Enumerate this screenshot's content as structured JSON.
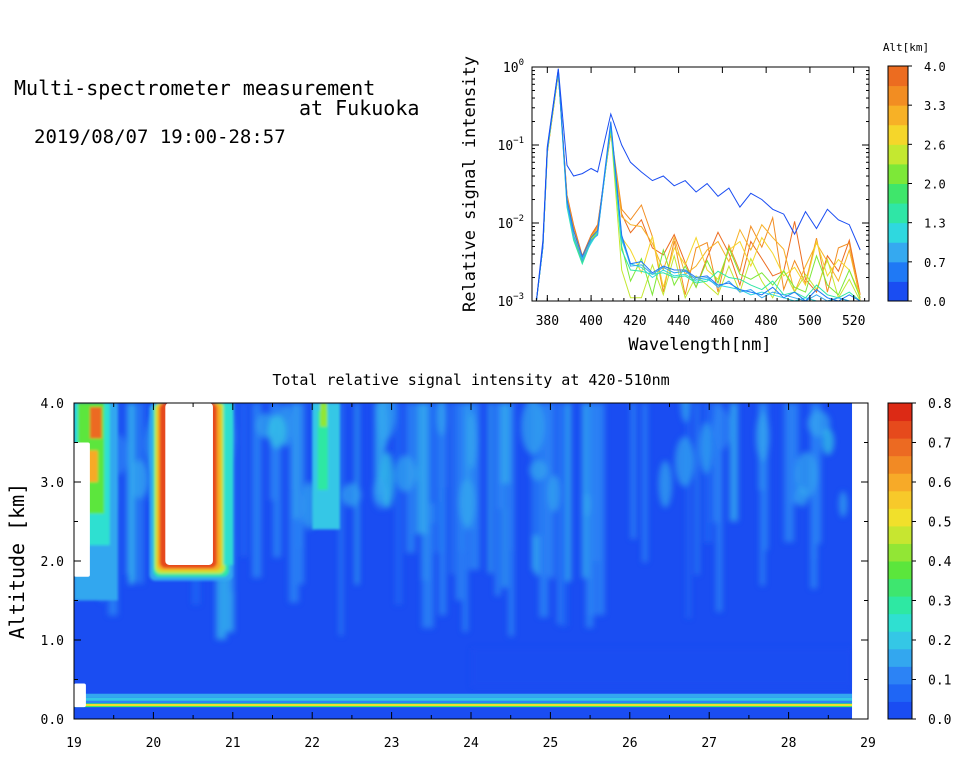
{
  "header": {
    "title_line1": "Multi-spectrometer measurement",
    "title_line2": "at Fukuoka",
    "date_range": "2019/08/07 19:00-28:57"
  },
  "colors": {
    "scale": [
      "#1a4df2",
      "#1f66f5",
      "#2c83f5",
      "#33a7ef",
      "#34c7e6",
      "#2fe0d1",
      "#2ee8a3",
      "#3ee66f",
      "#5be63c",
      "#92e635",
      "#c7e630",
      "#f1e02b",
      "#f7c92a",
      "#f7aa28",
      "#f28a24",
      "#ec6a22",
      "#e64a1c",
      "#dc2a15"
    ]
  },
  "chart_data": [
    {
      "id": "spectra",
      "type": "line",
      "xlabel": "Wavelength[nm]",
      "ylabel": "Relative signal intensity",
      "xlim": [
        373,
        527
      ],
      "ylim": [
        0.001,
        1
      ],
      "y_scale": "log",
      "x_ticks": [
        380,
        400,
        420,
        440,
        460,
        480,
        500,
        520
      ],
      "y_ticks": [
        {
          "value": 1,
          "base": "10",
          "exp": "0"
        },
        {
          "value": 0.1,
          "base": "10",
          "exp": "−1"
        },
        {
          "value": 0.01,
          "base": "10",
          "exp": "−2"
        },
        {
          "value": 0.001,
          "base": "10",
          "exp": "−3"
        }
      ],
      "colorbar": {
        "label": "Alt[km]",
        "ticks": [
          "4.0",
          "3.3",
          "2.6",
          "2.0",
          "1.3",
          "0.7",
          "0.0"
        ],
        "range": [
          0.0,
          4.0
        ],
        "colors": [
          "#1a4df2",
          "#1f79f5",
          "#35a9f0",
          "#2fd8df",
          "#2fe6a6",
          "#3fe66b",
          "#7de838",
          "#c4e830",
          "#f5d62a",
          "#f7b126",
          "#f28d22",
          "#ec6c20"
        ]
      },
      "x": [
        375,
        378,
        380,
        385,
        389,
        392,
        396,
        400,
        403,
        409,
        414,
        418,
        423,
        428,
        433,
        438,
        443,
        448,
        453,
        458,
        463,
        468,
        473,
        478,
        483,
        488,
        493,
        498,
        503,
        508,
        513,
        518,
        523
      ],
      "series": [
        {
          "altitude": 0.0,
          "values": [
            0.001,
            0.006,
            0.095,
            0.95,
            0.055,
            0.04,
            0.043,
            0.05,
            0.045,
            0.25,
            0.1,
            0.06,
            0.045,
            0.035,
            0.04,
            0.03,
            0.035,
            0.025,
            0.032,
            0.022,
            0.028,
            0.016,
            0.024,
            0.02,
            0.015,
            0.013,
            0.0072,
            0.014,
            0.0085,
            0.015,
            0.011,
            0.0095,
            0.0045
          ]
        },
        {
          "altitude": 0.4,
          "values": [
            0.001,
            0.005,
            0.09,
            0.93,
            0.02,
            0.008,
            0.0037,
            0.0065,
            0.008,
            0.2,
            0.007,
            0.003,
            0.0032,
            0.0023,
            0.0028,
            0.0025,
            0.0025,
            0.002,
            0.0021,
            0.0016,
            0.0017,
            0.0014,
            0.0013,
            0.0012,
            0.0015,
            0.0011,
            0.0013,
            0.001,
            0.0014,
            0.0011,
            0.001,
            0.0012,
            0.001
          ]
        },
        {
          "altitude": 0.8,
          "values": [
            0.001,
            0.005,
            0.088,
            0.92,
            0.018,
            0.007,
            0.0033,
            0.006,
            0.007,
            0.19,
            0.0065,
            0.0028,
            0.0029,
            0.0022,
            0.0027,
            0.0023,
            0.0024,
            0.0019,
            0.002,
            0.0015,
            0.0018,
            0.0013,
            0.0014,
            0.0011,
            0.0013,
            0.0012,
            0.0011,
            0.001,
            0.0012,
            0.001,
            0.0011,
            0.001,
            0.001
          ]
        },
        {
          "altitude": 1.2,
          "values": [
            0.001,
            0.005,
            0.086,
            0.9,
            0.017,
            0.0065,
            0.0035,
            0.0055,
            0.0075,
            0.18,
            0.006,
            0.003,
            0.0027,
            0.002,
            0.0025,
            0.0021,
            0.0022,
            0.0018,
            0.0019,
            0.0016,
            0.0015,
            0.0014,
            0.0012,
            0.0013,
            0.0012,
            0.0011,
            0.001,
            0.0011,
            0.001,
            0.001,
            0.0011,
            0.001,
            0.001
          ]
        },
        {
          "altitude": 1.6,
          "values": [
            0.001,
            0.005,
            0.085,
            0.88,
            0.016,
            0.006,
            0.003,
            0.0058,
            0.0072,
            0.17,
            0.0045,
            0.0025,
            0.0024,
            0.0022,
            0.0023,
            0.002,
            0.0021,
            0.0017,
            0.0018,
            0.0024,
            0.002,
            0.0019,
            0.0016,
            0.0014,
            0.0018,
            0.0012,
            0.0013,
            0.0011,
            0.0016,
            0.0012,
            0.0011,
            0.0013,
            0.001
          ]
        },
        {
          "altitude": 2.0,
          "values": [
            0.001,
            0.005,
            0.084,
            0.87,
            0.018,
            0.0065,
            0.0031,
            0.006,
            0.0075,
            0.17,
            0.005,
            0.0018,
            0.0035,
            0.0012,
            0.0045,
            0.0016,
            0.0028,
            0.0015,
            0.0033,
            0.0017,
            0.0048,
            0.0022,
            0.0019,
            0.0023,
            0.0016,
            0.0024,
            0.0015,
            0.0013,
            0.0038,
            0.0016,
            0.0012,
            0.0025,
            0.0011
          ]
        },
        {
          "altitude": 2.4,
          "values": [
            0.001,
            0.005,
            0.083,
            0.86,
            0.019,
            0.0068,
            0.0032,
            0.0062,
            0.0078,
            0.16,
            0.0025,
            0.0011,
            0.0011,
            0.0029,
            0.0012,
            0.0038,
            0.0011,
            0.0021,
            0.0016,
            0.0012,
            0.0028,
            0.0013,
            0.0035,
            0.0018,
            0.0011,
            0.0025,
            0.0013,
            0.0022,
            0.0014,
            0.0034,
            0.0011,
            0.0019,
            0.001
          ]
        },
        {
          "altitude": 2.8,
          "values": [
            0.001,
            0.005,
            0.082,
            0.85,
            0.02,
            0.007,
            0.0033,
            0.0064,
            0.008,
            0.16,
            0.0065,
            0.0045,
            0.0023,
            0.0068,
            0.0015,
            0.0048,
            0.0029,
            0.0065,
            0.0025,
            0.0019,
            0.0045,
            0.0058,
            0.0028,
            0.0065,
            0.0041,
            0.0021,
            0.0027,
            0.0016,
            0.0058,
            0.0021,
            0.0034,
            0.0025,
            0.0012
          ]
        },
        {
          "altitude": 3.2,
          "values": [
            0.001,
            0.005,
            0.081,
            0.84,
            0.021,
            0.008,
            0.0034,
            0.0066,
            0.0085,
            0.15,
            0.012,
            0.0095,
            0.009,
            0.0055,
            0.0025,
            0.0065,
            0.0022,
            0.0028,
            0.0045,
            0.0058,
            0.0032,
            0.0082,
            0.0045,
            0.0095,
            0.0065,
            0.0046,
            0.0013,
            0.0028,
            0.0055,
            0.0032,
            0.0018,
            0.0045,
            0.0011
          ]
        },
        {
          "altitude": 3.6,
          "values": [
            0.001,
            0.005,
            0.08,
            0.83,
            0.022,
            0.009,
            0.0036,
            0.0068,
            0.009,
            0.15,
            0.015,
            0.011,
            0.017,
            0.0067,
            0.0013,
            0.0059,
            0.0012,
            0.0048,
            0.0056,
            0.0013,
            0.0052,
            0.0024,
            0.0091,
            0.0049,
            0.0117,
            0.0014,
            0.0033,
            0.0017,
            0.0064,
            0.0013,
            0.0048,
            0.0055,
            0.001
          ]
        },
        {
          "altitude": 3.9,
          "values": [
            0.001,
            0.005,
            0.079,
            0.82,
            0.023,
            0.0095,
            0.0038,
            0.007,
            0.0095,
            0.14,
            0.013,
            0.0075,
            0.011,
            0.0048,
            0.0039,
            0.0071,
            0.0031,
            0.0015,
            0.0036,
            0.0076,
            0.0041,
            0.0016,
            0.0058,
            0.0035,
            0.0021,
            0.0024,
            0.0105,
            0.0019,
            0.0013,
            0.0038,
            0.0024,
            0.006,
            0.0012
          ]
        }
      ]
    },
    {
      "id": "altitude-time",
      "type": "heatmap",
      "title": "Total relative signal intensity at 420-510nm",
      "ylabel": "Altitude [km]",
      "xlabel": "",
      "xlim": [
        19,
        29
      ],
      "ylim": [
        0.0,
        4.0
      ],
      "x_ticks": [
        19,
        20,
        21,
        22,
        23,
        24,
        25,
        26,
        27,
        28,
        29
      ],
      "y_ticks": [
        "0.0",
        "1.0",
        "2.0",
        "3.0",
        "4.0"
      ],
      "colorbar": {
        "range": [
          0.0,
          0.8
        ],
        "ticks": [
          "0.8",
          "0.7",
          "0.6",
          "0.5",
          "0.4",
          "0.3",
          "0.2",
          "0.1",
          "0.0"
        ]
      },
      "data_end_hour": 28.8,
      "missing_regions": [
        {
          "x": [
            20.15,
            20.75
          ],
          "y": [
            1.95,
            4.0
          ]
        },
        {
          "x": [
            19.0,
            19.2
          ],
          "y": [
            1.8,
            3.5
          ]
        },
        {
          "x": [
            19.0,
            19.15
          ],
          "y": [
            0.15,
            0.45
          ]
        }
      ],
      "features": [
        {
          "kind": "near-surface layer",
          "y": [
            0.15,
            0.3
          ],
          "level": 0.35
        },
        {
          "kind": "low layer",
          "y": [
            0.4,
            0.9
          ],
          "level": 0.05
        },
        {
          "kind": "plume",
          "x": [
            20.0,
            20.95
          ],
          "y": [
            1.85,
            4.0
          ],
          "level": 0.55
        },
        {
          "kind": "column",
          "x": [
            22.0,
            22.35
          ],
          "y": [
            2.4,
            4.0
          ],
          "level": 0.3
        },
        {
          "kind": "column",
          "x": [
            19.0,
            19.5
          ],
          "y": [
            1.6,
            4.0
          ],
          "level": 0.55
        }
      ]
    }
  ]
}
